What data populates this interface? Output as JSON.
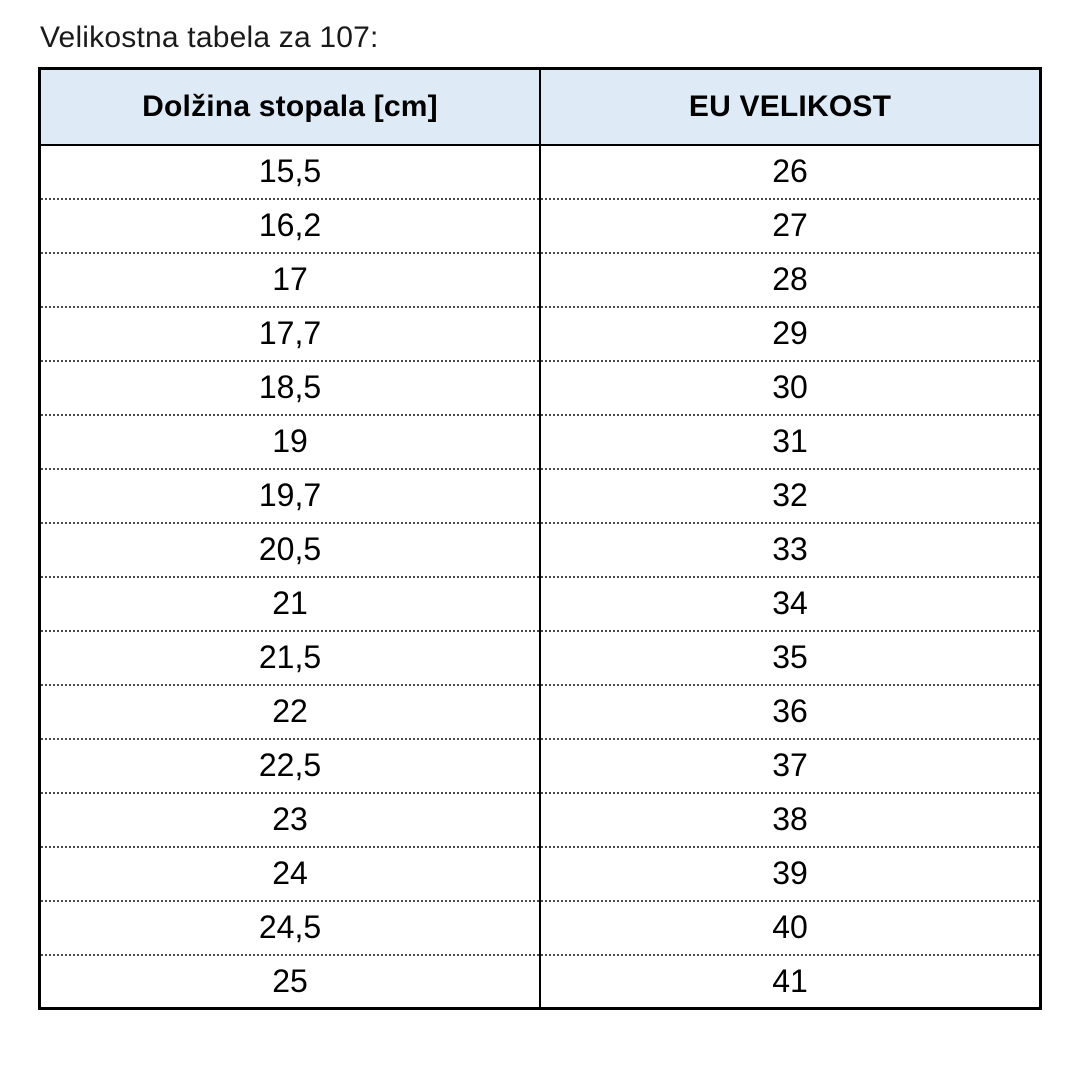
{
  "title": "Velikostna tabela za 107:",
  "table": {
    "columns": [
      "Dolžina stopala [cm]",
      "EU VELIKOST"
    ],
    "rows": [
      [
        "15,5",
        "26"
      ],
      [
        "16,2",
        "27"
      ],
      [
        "17",
        "28"
      ],
      [
        "17,7",
        "29"
      ],
      [
        "18,5",
        "30"
      ],
      [
        "19",
        "31"
      ],
      [
        "19,7",
        "32"
      ],
      [
        "20,5",
        "33"
      ],
      [
        "21",
        "34"
      ],
      [
        "21,5",
        "35"
      ],
      [
        "22",
        "36"
      ],
      [
        "22,5",
        "37"
      ],
      [
        "23",
        "38"
      ],
      [
        "24",
        "39"
      ],
      [
        "24,5",
        "40"
      ],
      [
        "25",
        "41"
      ]
    ]
  },
  "colors": {
    "header_bg": "#deeaf6",
    "border": "#000000",
    "row_divider": "#4a4a4a",
    "text": "#000000"
  }
}
